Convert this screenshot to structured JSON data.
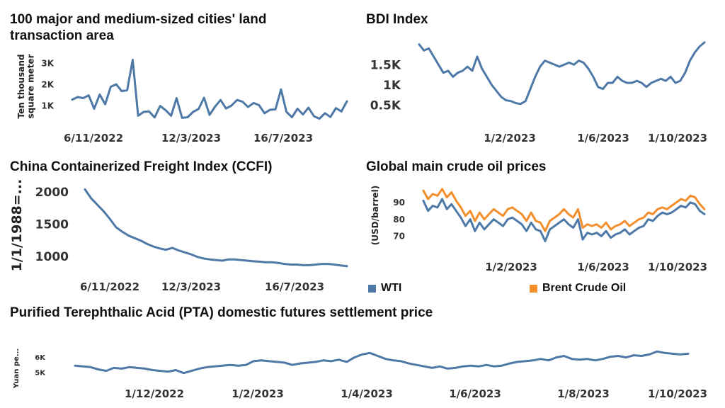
{
  "chart_data": [
    {
      "type": "line",
      "title": "100 major and medium-sized cities' land transaction area",
      "ylabel": "Ten thousand square meter",
      "x_ticks": [
        "6/11/2022",
        "12/3/2023",
        "16/7/2023"
      ],
      "y_ticks": [
        "1K",
        "2K",
        "3K"
      ],
      "ylim": [
        300,
        3300
      ],
      "series": [
        {
          "color": "#4e79a7",
          "values": [
            1280,
            1400,
            1350,
            1480,
            850,
            1520,
            1060,
            1880,
            2000,
            1680,
            1720,
            3150,
            520,
            700,
            720,
            440,
            980,
            780,
            520,
            1350,
            420,
            450,
            700,
            840,
            1370,
            560,
            950,
            1260,
            860,
            1000,
            1260,
            1180,
            930,
            1120,
            1020,
            640,
            800,
            820,
            1760,
            700,
            450,
            850,
            580,
            900,
            500,
            380,
            640,
            460,
            880,
            720,
            1200
          ]
        }
      ]
    },
    {
      "type": "line",
      "title": "BDI Index",
      "x_ticks": [
        "1/2/2023",
        "1/6/2023",
        "1/10/2023"
      ],
      "y_ticks": [
        "0.5K",
        "1K",
        "1.5K"
      ],
      "ylim": [
        0,
        2100
      ],
      "series": [
        {
          "color": "#4e79a7",
          "values": [
            2000,
            1850,
            1900,
            1700,
            1500,
            1300,
            1350,
            1200,
            1300,
            1350,
            1450,
            1350,
            1700,
            1400,
            1200,
            1000,
            850,
            700,
            620,
            600,
            550,
            530,
            600,
            900,
            1200,
            1450,
            1600,
            1550,
            1500,
            1450,
            1500,
            1550,
            1500,
            1600,
            1550,
            1400,
            1200,
            950,
            900,
            1050,
            1050,
            1200,
            1100,
            1050,
            1050,
            1100,
            1050,
            950,
            1050,
            1100,
            1150,
            1100,
            1200,
            1050,
            1100,
            1300,
            1600,
            1800,
            1950,
            2050
          ]
        }
      ]
    },
    {
      "type": "line",
      "title": "China Containerized Freight Index (CCFI)",
      "ylabel": "1/1/1988=...",
      "x_ticks": [
        "6/11/2022",
        "12/3/2023",
        "16/7/2023"
      ],
      "y_ticks": [
        "1000",
        "1500",
        "2000"
      ],
      "ylim": [
        820,
        2100
      ],
      "series": [
        {
          "color": "#4e79a7",
          "values": [
            2040,
            1900,
            1800,
            1700,
            1580,
            1450,
            1380,
            1320,
            1280,
            1240,
            1190,
            1150,
            1120,
            1100,
            1130,
            1090,
            1060,
            1030,
            990,
            965,
            950,
            940,
            930,
            950,
            950,
            940,
            930,
            920,
            915,
            905,
            905,
            895,
            880,
            870,
            870,
            860,
            860,
            870,
            880,
            880,
            870,
            855,
            845
          ]
        }
      ]
    },
    {
      "type": "line",
      "title": "Global main crude oil prices",
      "ylabel": "(USD/barrel)",
      "x_ticks": [
        "1/2/2023",
        "1/6/2023",
        "1/10/2023"
      ],
      "y_ticks": [
        "70",
        "80",
        "90"
      ],
      "ylim": [
        63,
        100
      ],
      "legend": "bottom",
      "series": [
        {
          "name": "WTI",
          "color": "#4e79a7",
          "values": [
            91,
            85,
            88,
            87,
            92,
            86,
            89,
            85,
            81,
            76,
            80,
            73,
            78,
            74,
            77,
            80,
            78,
            76,
            80,
            81,
            79,
            77,
            73,
            78,
            74,
            73,
            67,
            74,
            76,
            78,
            80,
            77,
            75,
            80,
            68,
            72,
            71,
            72,
            70,
            73,
            69,
            71,
            72,
            74,
            71,
            73,
            75,
            76,
            80,
            79,
            82,
            84,
            83,
            84,
            86,
            88,
            87,
            90,
            89,
            85,
            83
          ]
        },
        {
          "name": "Brent Crude Oil",
          "color": "#f28e2b",
          "values": [
            97,
            92,
            95,
            94,
            98,
            93,
            96,
            91,
            87,
            82,
            85,
            79,
            84,
            80,
            83,
            86,
            84,
            82,
            86,
            87,
            85,
            83,
            79,
            84,
            79,
            78,
            73,
            79,
            81,
            83,
            86,
            83,
            81,
            86,
            75,
            77,
            76,
            77,
            75,
            78,
            74,
            76,
            77,
            79,
            76,
            78,
            80,
            81,
            84,
            83,
            86,
            87,
            86,
            88,
            90,
            92,
            91,
            94,
            93,
            89,
            86
          ]
        }
      ]
    },
    {
      "type": "line",
      "title": "Purified Terephthalic Acid (PTA) domestic futures settlement price",
      "ylabel": "Yuan pe...",
      "x_ticks": [
        "1/12/2022",
        "1/2/2023",
        "1/4/2023",
        "1/6/2023",
        "1/8/2023",
        "1/10/2023"
      ],
      "y_ticks": [
        "5K",
        "6K"
      ],
      "ylim": [
        4700,
        6600
      ],
      "series": [
        {
          "color": "#4e79a7",
          "values": [
            5450,
            5400,
            5350,
            5200,
            5100,
            5300,
            5250,
            5350,
            5300,
            5250,
            5150,
            5100,
            5050,
            5150,
            4950,
            5100,
            5250,
            5350,
            5400,
            5450,
            5500,
            5450,
            5500,
            5750,
            5800,
            5750,
            5700,
            5650,
            5500,
            5600,
            5650,
            5700,
            5800,
            5750,
            5850,
            5700,
            6000,
            6200,
            6300,
            6100,
            5900,
            5800,
            5750,
            5600,
            5500,
            5400,
            5300,
            5400,
            5250,
            5300,
            5400,
            5450,
            5400,
            5500,
            5400,
            5450,
            5600,
            5700,
            5750,
            5800,
            5900,
            5800,
            6000,
            6100,
            5900,
            5850,
            5900,
            5800,
            5900,
            6050,
            6100,
            6000,
            6150,
            6100,
            6200,
            6400,
            6300,
            6250,
            6200,
            6250
          ]
        }
      ]
    }
  ]
}
